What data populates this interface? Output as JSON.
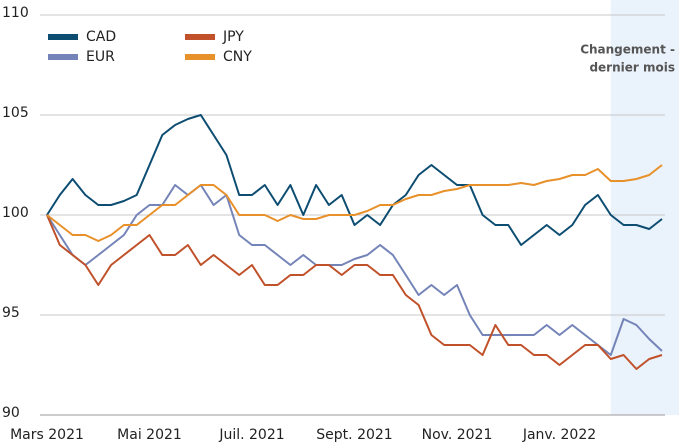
{
  "chart_data": {
    "type": "line",
    "categories": [
      "Mars 2021",
      null,
      null,
      null,
      null,
      null,
      null,
      null,
      "Mai 2021",
      null,
      null,
      null,
      null,
      null,
      null,
      null,
      "Juil. 2021",
      null,
      null,
      null,
      null,
      null,
      null,
      null,
      "Sept. 2021",
      null,
      null,
      null,
      null,
      null,
      null,
      null,
      "Nov. 2021",
      null,
      null,
      null,
      null,
      null,
      null,
      null,
      "Janv. 2022",
      null,
      null,
      null,
      null,
      null,
      null,
      null,
      null
    ],
    "series": [
      {
        "name": "CAD",
        "color": "#0d4d72",
        "values": [
          100,
          101,
          101.8,
          101,
          100.5,
          100.5,
          100.7,
          101,
          102.5,
          104,
          104.5,
          104.8,
          105,
          104,
          103,
          101,
          101,
          101.5,
          100.5,
          101.5,
          100,
          101.5,
          100.5,
          101,
          99.5,
          100,
          99.5,
          100.5,
          101,
          102,
          102.5,
          102,
          101.5,
          101.5,
          100,
          99.5,
          99.5,
          98.5,
          99,
          99.5,
          99,
          99.5,
          100.5,
          101,
          100,
          99.5,
          99.5,
          99.3,
          99.8
        ]
      },
      {
        "name": "EUR",
        "color": "#7484b8",
        "values": [
          100,
          99,
          98,
          97.5,
          98,
          98.5,
          99,
          100,
          100.5,
          100.5,
          101.5,
          101,
          101.5,
          100.5,
          101,
          99,
          98.5,
          98.5,
          98,
          97.5,
          98,
          97.5,
          97.5,
          97.5,
          97.8,
          98,
          98.5,
          98,
          97,
          96,
          96.5,
          96,
          96.5,
          95,
          94,
          94,
          94,
          94,
          94,
          94.5,
          94,
          94.5,
          94,
          93.5,
          93,
          94.8,
          94.5,
          93.8,
          93.2
        ]
      },
      {
        "name": "JPY",
        "color": "#c0512a",
        "values": [
          100,
          98.5,
          98,
          97.5,
          96.5,
          97.5,
          98,
          98.5,
          99,
          98,
          98,
          98.5,
          97.5,
          98,
          97.5,
          97,
          97.5,
          96.5,
          96.5,
          97,
          97,
          97.5,
          97.5,
          97,
          97.5,
          97.5,
          97,
          97,
          96,
          95.5,
          94,
          93.5,
          93.5,
          93.5,
          93,
          94.5,
          93.5,
          93.5,
          93,
          93,
          92.5,
          93,
          93.5,
          93.5,
          92.8,
          93,
          92.3,
          92.8,
          93
        ]
      },
      {
        "name": "CNY",
        "color": "#e8902a",
        "values": [
          100,
          99.5,
          99,
          99,
          98.7,
          99,
          99.5,
          99.5,
          100,
          100.5,
          100.5,
          101,
          101.5,
          101.5,
          101,
          100,
          100,
          100,
          99.7,
          100,
          99.8,
          99.8,
          100,
          100,
          100,
          100.2,
          100.5,
          100.5,
          100.8,
          101,
          101,
          101.2,
          101.3,
          101.5,
          101.5,
          101.5,
          101.5,
          101.6,
          101.5,
          101.7,
          101.8,
          102,
          102,
          102.3,
          101.7,
          101.7,
          101.8,
          102,
          102.5
        ]
      }
    ],
    "ylim": [
      90,
      110
    ],
    "yticks": [
      90,
      95,
      100,
      105,
      110
    ],
    "grid": true,
    "highlight": {
      "from": 44,
      "label": [
        "Changement -",
        "dernier mois"
      ]
    }
  }
}
